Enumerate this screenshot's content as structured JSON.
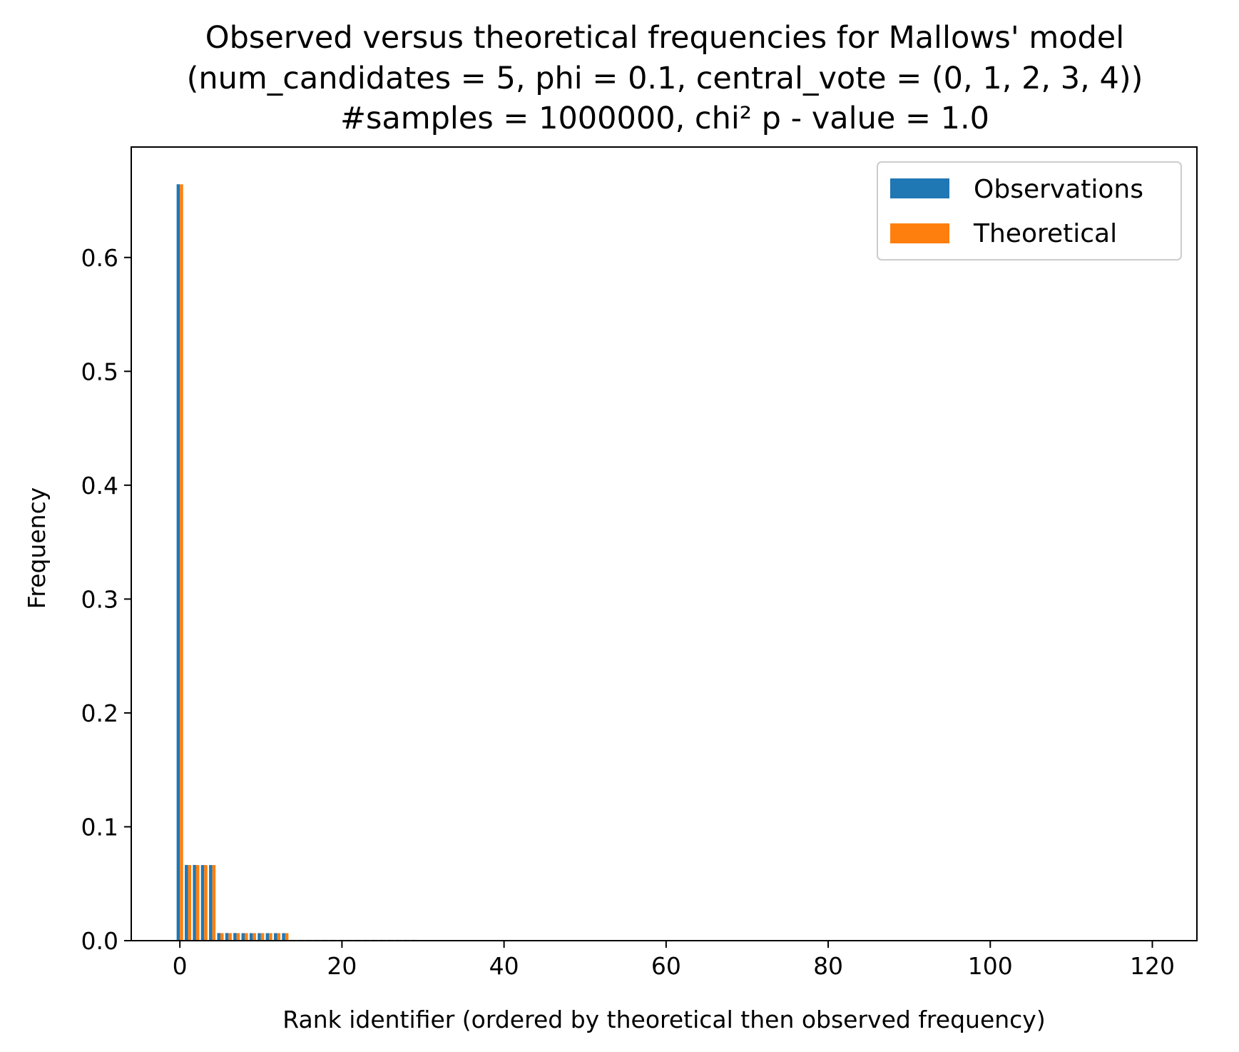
{
  "chart_data": {
    "type": "bar",
    "title": [
      "Observed versus theoretical frequencies for Mallows' model",
      "(num_candidates = 5, phi = 0.1, central_vote = (0, 1, 2, 3, 4))",
      "#samples = 1000000, chi² p - value = 1.0"
    ],
    "xlabel": "Rank identifier (ordered by theoretical then observed frequency)",
    "ylabel": "Frequency",
    "xlim": [
      -6,
      125.5
    ],
    "ylim": [
      0,
      0.697
    ],
    "xticks": [
      0,
      20,
      40,
      60,
      80,
      100,
      120
    ],
    "yticks": [
      0.0,
      0.1,
      0.2,
      0.3,
      0.4,
      0.5,
      0.6
    ],
    "ytick_labels": [
      "0.0",
      "0.1",
      "0.2",
      "0.3",
      "0.4",
      "0.5",
      "0.6"
    ],
    "bar_group_width": 0.8,
    "legend": {
      "placement": "top-right"
    },
    "grid": false,
    "x": [
      0,
      1,
      2,
      3,
      4,
      5,
      6,
      7,
      8,
      9,
      10,
      11,
      12,
      13,
      14,
      15,
      16,
      17,
      18,
      19,
      20,
      21,
      22,
      23,
      24,
      25,
      26,
      27,
      28,
      29,
      30,
      31,
      32,
      33,
      34,
      35,
      36,
      37,
      38,
      39,
      40,
      41,
      42,
      43,
      44,
      45,
      46,
      47,
      48,
      49,
      50,
      51,
      52,
      53,
      54,
      55,
      56,
      57,
      58,
      59,
      60,
      61,
      62,
      63,
      64,
      65,
      66,
      67,
      68,
      69,
      70,
      71,
      72,
      73,
      74,
      75,
      76,
      77,
      78,
      79,
      80,
      81,
      82,
      83,
      84,
      85,
      86,
      87,
      88,
      89,
      90,
      91,
      92,
      93,
      94,
      95,
      96,
      97,
      98,
      99,
      100,
      101,
      102,
      103,
      104,
      105,
      106,
      107,
      108,
      109,
      110,
      111,
      112,
      113,
      114,
      115,
      116,
      117,
      118,
      119
    ],
    "series": [
      {
        "name": "Observations",
        "color": "#1f77b4",
        "values": [
          0.6643,
          0.0665,
          0.0665,
          0.0664,
          0.0664,
          0.0067,
          0.0067,
          0.0067,
          0.0066,
          0.0066,
          0.0066,
          0.0066,
          0.0066,
          0.0066,
          0.0007,
          0.0007,
          0.0007,
          0.0007,
          0.0007,
          0.0007,
          0.0007,
          0.0007,
          0.0007,
          0.0007,
          0.0007,
          0.0007,
          0.0007,
          0.0007,
          0.0007,
          0.0007,
          0.0,
          0.0,
          0.0,
          0.0,
          0.0,
          0.0,
          0.0,
          0.0,
          0.0,
          0.0,
          0.0,
          0.0,
          0.0,
          0.0,
          0.0,
          0.0,
          0.0,
          0.0,
          0.0,
          0.0,
          0.0,
          0.0,
          0.0,
          0.0,
          0.0,
          0.0,
          0.0,
          0.0,
          0.0,
          0.0,
          0.0,
          0.0,
          0.0,
          0.0,
          0.0,
          0.0,
          0.0,
          0.0,
          0.0,
          0.0,
          0.0,
          0.0,
          0.0,
          0.0,
          0.0,
          0.0,
          0.0,
          0.0,
          0.0,
          0.0,
          0.0,
          0.0,
          0.0,
          0.0,
          0.0,
          0.0,
          0.0,
          0.0,
          0.0,
          0.0,
          0.0,
          0.0,
          0.0,
          0.0,
          0.0,
          0.0,
          0.0,
          0.0,
          0.0,
          0.0,
          0.0,
          0.0,
          0.0,
          0.0,
          0.0,
          0.0,
          0.0,
          0.0,
          0.0,
          0.0,
          0.0,
          0.0,
          0.0,
          0.0,
          0.0,
          0.0,
          0.0,
          0.0,
          0.0,
          0.0
        ]
      },
      {
        "name": "Theoretical",
        "color": "#ff7f0e",
        "values": [
          0.6642,
          0.0664,
          0.0664,
          0.0664,
          0.0664,
          0.0066,
          0.0066,
          0.0066,
          0.0066,
          0.0066,
          0.0066,
          0.0066,
          0.0066,
          0.0066,
          0.0007,
          0.0007,
          0.0007,
          0.0007,
          0.0007,
          0.0007,
          0.0007,
          0.0007,
          0.0007,
          0.0007,
          0.0007,
          0.0007,
          0.0007,
          0.0007,
          0.0007,
          0.0007,
          0.0,
          0.0,
          0.0,
          0.0,
          0.0,
          0.0,
          0.0,
          0.0,
          0.0,
          0.0,
          0.0,
          0.0,
          0.0,
          0.0,
          0.0,
          0.0,
          0.0,
          0.0,
          0.0,
          0.0,
          0.0,
          0.0,
          0.0,
          0.0,
          0.0,
          0.0,
          0.0,
          0.0,
          0.0,
          0.0,
          0.0,
          0.0,
          0.0,
          0.0,
          0.0,
          0.0,
          0.0,
          0.0,
          0.0,
          0.0,
          0.0,
          0.0,
          0.0,
          0.0,
          0.0,
          0.0,
          0.0,
          0.0,
          0.0,
          0.0,
          0.0,
          0.0,
          0.0,
          0.0,
          0.0,
          0.0,
          0.0,
          0.0,
          0.0,
          0.0,
          0.0,
          0.0,
          0.0,
          0.0,
          0.0,
          0.0,
          0.0,
          0.0,
          0.0,
          0.0,
          0.0,
          0.0,
          0.0,
          0.0,
          0.0,
          0.0,
          0.0,
          0.0,
          0.0,
          0.0,
          0.0,
          0.0,
          0.0,
          0.0,
          0.0,
          0.0,
          0.0,
          0.0,
          0.0,
          0.0
        ]
      }
    ]
  }
}
